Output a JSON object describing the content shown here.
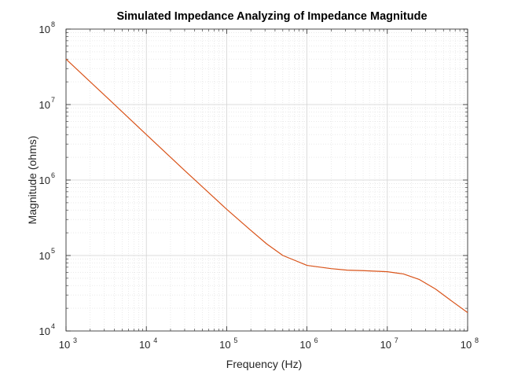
{
  "chart_data": {
    "type": "line",
    "title": "Simulated Impedance Analyzing of Impedance Magnitude",
    "xlabel": "Frequency (Hz)",
    "ylabel": "Magnitude (ohms)",
    "xscale": "log",
    "yscale": "log",
    "xlim": [
      1000,
      100000000
    ],
    "ylim": [
      10000,
      100000000
    ],
    "grid": true,
    "minor_grid": true,
    "x_ticks": [
      {
        "base": "10",
        "exp": "3",
        "value": 1000
      },
      {
        "base": "10",
        "exp": "4",
        "value": 10000
      },
      {
        "base": "10",
        "exp": "5",
        "value": 100000
      },
      {
        "base": "10",
        "exp": "6",
        "value": 1000000
      },
      {
        "base": "10",
        "exp": "7",
        "value": 10000000
      },
      {
        "base": "10",
        "exp": "8",
        "value": 100000000
      }
    ],
    "y_ticks": [
      {
        "base": "10",
        "exp": "4",
        "value": 10000
      },
      {
        "base": "10",
        "exp": "5",
        "value": 100000
      },
      {
        "base": "10",
        "exp": "6",
        "value": 1000000
      },
      {
        "base": "10",
        "exp": "7",
        "value": 10000000
      },
      {
        "base": "10",
        "exp": "8",
        "value": 100000000
      }
    ],
    "series": [
      {
        "color": "#D95319",
        "x": [
          1000,
          3162,
          10000,
          31623,
          100000,
          200000,
          316228,
          501187,
          1000000,
          1995262,
          3162278,
          5011872,
          10000000,
          15848932,
          25118864,
          39810717,
          63095734,
          100000000
        ],
        "y": [
          40000000,
          12700000,
          4000000,
          1270000,
          410000,
          215000,
          142000,
          100000,
          74000,
          67000,
          64000,
          63000,
          61000,
          57000,
          48000,
          36000,
          25000,
          17500
        ]
      }
    ]
  }
}
